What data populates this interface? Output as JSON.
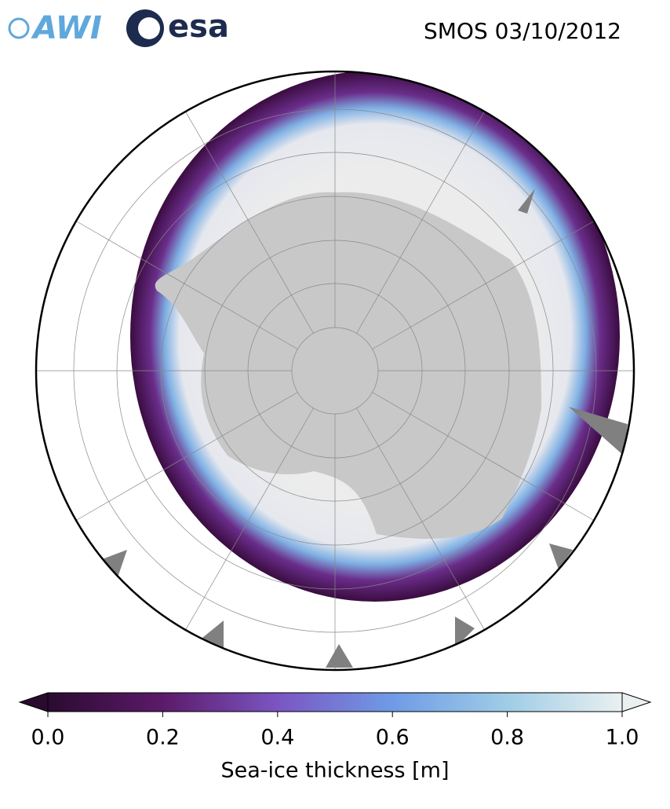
{
  "header": {
    "logos": [
      "AWI",
      "esa"
    ],
    "title": "SMOS 03/10/2012"
  },
  "colorbar": {
    "label": "Sea-ice thickness [m]",
    "lim": [
      0,
      1
    ],
    "ticks": [
      {
        "value": 0,
        "label": "0.0"
      },
      {
        "value": 0.2,
        "label": "0.2"
      },
      {
        "value": 0.4,
        "label": "0.4"
      },
      {
        "value": 0.6,
        "label": "0.6"
      },
      {
        "value": 0.8,
        "label": "0.8"
      },
      {
        "value": 1,
        "label": "1.0"
      }
    ],
    "colors": [
      "#2a0b30",
      "#5c1a6a",
      "#7b55c2",
      "#6f9be6",
      "#9fcde6",
      "#eaf0f0"
    ]
  }
}
